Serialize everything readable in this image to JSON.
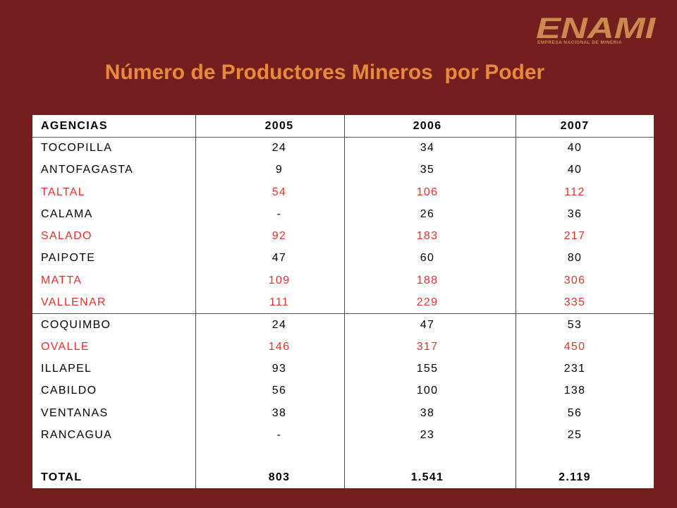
{
  "slide": {
    "title": "Número de Productores Mineros  por Poder"
  },
  "logo": {
    "wordmark": "ENAMI",
    "tagline": "EMPRESA NACIONAL DE MINERIA"
  },
  "colors": {
    "background": "#731e1f",
    "title": "#e88a3a",
    "logo": "#cc8a4e",
    "table_background": "#ffffff",
    "text_default": "#000000",
    "text_highlight": "#e5302a"
  },
  "chart_data": {
    "type": "table",
    "columns": [
      "AGENCIAS",
      "2005",
      "2006",
      "2007"
    ],
    "row_groups": [
      {
        "rows": [
          {
            "agencia": "TOCOPILLA",
            "values": [
              "24",
              "34",
              "40"
            ],
            "color": "#000000"
          },
          {
            "agencia": "ANTOFAGASTA",
            "values": [
              "9",
              "35",
              "40"
            ],
            "color": "#000000"
          },
          {
            "agencia": "TALTAL",
            "values": [
              "54",
              "106",
              "112"
            ],
            "color": "#e5302a"
          },
          {
            "agencia": "CALAMA",
            "values": [
              "-",
              "26",
              "36"
            ],
            "color": "#000000"
          },
          {
            "agencia": "SALADO",
            "values": [
              "92",
              "183",
              "217"
            ],
            "color": "#e5302a"
          },
          {
            "agencia": "PAIPOTE",
            "values": [
              "47",
              "60",
              "80"
            ],
            "color": "#000000"
          },
          {
            "agencia": "MATTA",
            "values": [
              "109",
              "188",
              "306"
            ],
            "color": "#e5302a"
          },
          {
            "agencia": "VALLENAR",
            "values": [
              "111",
              "229",
              "335"
            ],
            "color": "#e5302a"
          }
        ]
      },
      {
        "rows": [
          {
            "agencia": "COQUIMBO",
            "values": [
              "24",
              "47",
              "53"
            ],
            "color": "#000000"
          },
          {
            "agencia": "OVALLE",
            "values": [
              "146",
              "317",
              "450"
            ],
            "color": "#e5302a"
          },
          {
            "agencia": "ILLAPEL",
            "values": [
              "93",
              "155",
              "231"
            ],
            "color": "#000000"
          },
          {
            "agencia": "CABILDO",
            "values": [
              "56",
              "100",
              "138"
            ],
            "color": "#000000"
          },
          {
            "agencia": "VENTANAS",
            "values": [
              "38",
              "38",
              "56"
            ],
            "color": "#000000"
          },
          {
            "agencia": "RANCAGUA",
            "values": [
              "-",
              "23",
              "25"
            ],
            "color": "#000000"
          }
        ]
      }
    ],
    "total": {
      "label": "TOTAL",
      "values": [
        "803",
        "1.541",
        "2.119"
      ]
    }
  }
}
